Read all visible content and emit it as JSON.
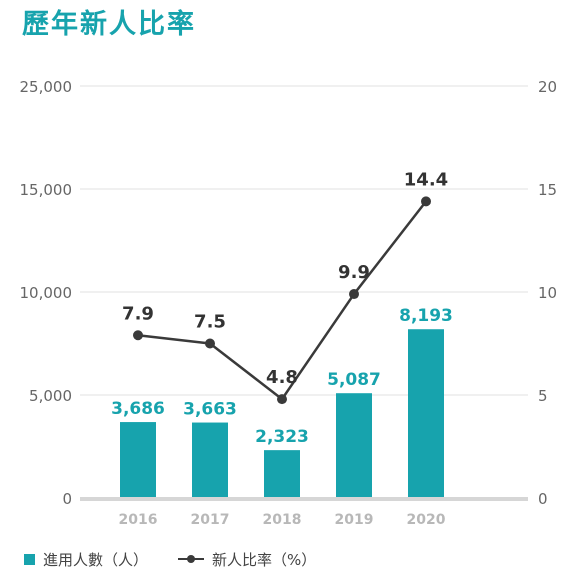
{
  "page": {
    "title": "歷年新人比率"
  },
  "colors": {
    "bar": "#17a3ad",
    "line": "#3a3a3a",
    "bar_label": "#17a3ad",
    "line_label": "#333333",
    "axis_tick": "#666666",
    "year_tick": "#b8b8b8",
    "baseline": "#d6d6d6",
    "grid": "#e2e2e2"
  },
  "chart_data": {
    "type": "bar",
    "categories": [
      "2016",
      "2017",
      "2018",
      "2019",
      "2020"
    ],
    "series": [
      {
        "name": "進用人數（人）",
        "type": "bar",
        "axis": "left",
        "values": [
          3686,
          3663,
          2323,
          5087,
          8193
        ],
        "labels": [
          "3,686",
          "3,663",
          "2,323",
          "5,087",
          "8,193"
        ]
      },
      {
        "name": "新人比率（%）",
        "type": "line",
        "axis": "right",
        "values": [
          7.9,
          7.5,
          4.8,
          9.9,
          14.4
        ],
        "labels": [
          "7.9",
          "7.5",
          "4.8",
          "9.9",
          "14.4"
        ]
      }
    ],
    "y_left": {
      "ticks": [
        0,
        5000,
        10000,
        15000,
        25000
      ],
      "tick_labels": [
        "0",
        "5,000",
        "10,000",
        "15,000",
        "25,000"
      ],
      "range": [
        0,
        20000
      ]
    },
    "y_right": {
      "ticks": [
        0,
        5,
        10,
        15,
        20
      ],
      "tick_labels": [
        "0",
        "5",
        "10",
        "15",
        "20"
      ],
      "range": [
        0,
        20
      ]
    },
    "grid": true,
    "legend": "bottom-left"
  }
}
